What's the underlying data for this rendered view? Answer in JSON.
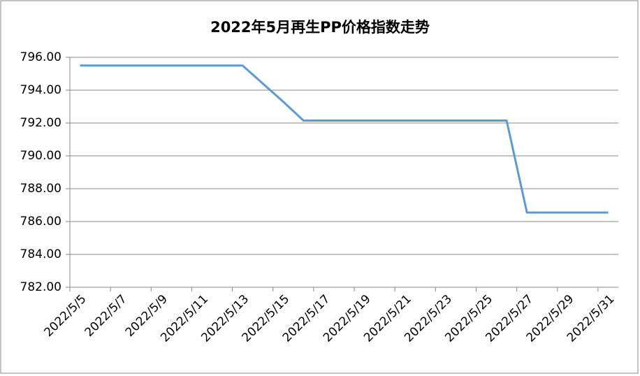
{
  "chart_data": {
    "type": "line",
    "title": "2022年5月再生PP价格指数走势",
    "categories": [
      "2022/5/5",
      null,
      "2022/5/7",
      null,
      "2022/5/9",
      null,
      "2022/5/11",
      null,
      "2022/5/13",
      null,
      "2022/5/15",
      null,
      "2022/5/17",
      null,
      "2022/5/19",
      null,
      "2022/5/21",
      null,
      "2022/5/23",
      null,
      "2022/5/25",
      null,
      "2022/5/27",
      null,
      "2022/5/29",
      null,
      "2022/5/31"
    ],
    "series": [
      {
        "color": "#5b9bd5",
        "values": [
          795.5,
          795.5,
          795.5,
          795.5,
          795.5,
          795.5,
          795.5,
          795.5,
          795.5,
          794.4,
          793.3,
          792.15,
          792.15,
          792.15,
          792.15,
          792.15,
          792.15,
          792.15,
          792.15,
          792.15,
          792.15,
          792.15,
          786.55,
          786.55,
          786.55,
          786.55,
          786.55
        ]
      }
    ],
    "ylim": [
      782,
      796
    ],
    "yticks": [
      {
        "value": 782,
        "label": "782.00"
      },
      {
        "value": 784,
        "label": "784.00"
      },
      {
        "value": 786,
        "label": "786.00"
      },
      {
        "value": 788,
        "label": "788.00"
      },
      {
        "value": 790,
        "label": "790.00"
      },
      {
        "value": 792,
        "label": "792.00"
      },
      {
        "value": 794,
        "label": "794.00"
      },
      {
        "value": 796,
        "label": "796.00"
      }
    ],
    "grid": true
  }
}
